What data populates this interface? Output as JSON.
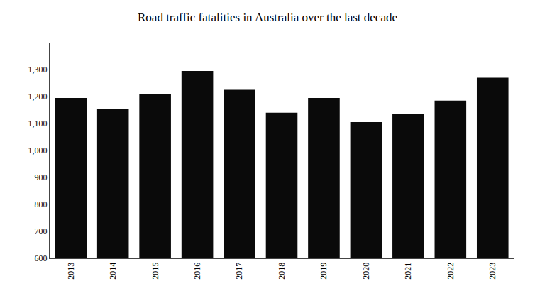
{
  "chart_data": {
    "type": "bar",
    "title": "Road traffic fatalities in Australia over the last decade",
    "categories": [
      "2013",
      "2014",
      "2015",
      "2016",
      "2017",
      "2018",
      "2019",
      "2020",
      "2021",
      "2022",
      "2023"
    ],
    "values": [
      1195,
      1155,
      1210,
      1295,
      1225,
      1140,
      1195,
      1105,
      1135,
      1185,
      1270
    ],
    "color": "#0a0a0a",
    "ylim": [
      600,
      1400
    ],
    "yticks": [
      600,
      700,
      800,
      900,
      {
        "value": 1000,
        "label": "1,000"
      },
      {
        "value": 1100,
        "label": "1,100"
      },
      {
        "value": 1200,
        "label": "1,200"
      },
      {
        "value": 1300,
        "label": "1,300"
      }
    ],
    "grid": false
  }
}
